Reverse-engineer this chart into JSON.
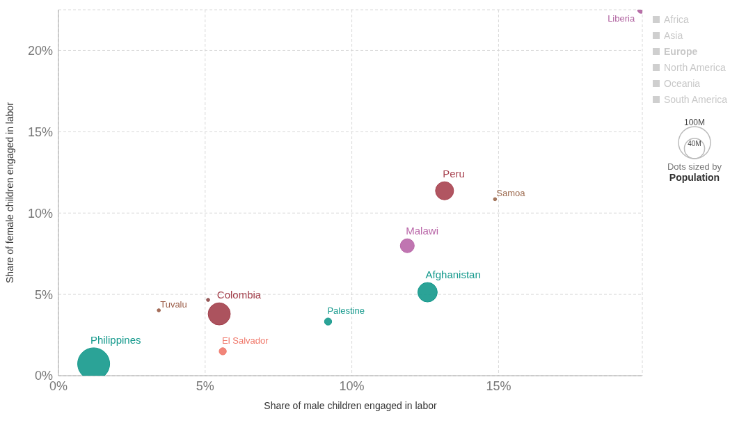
{
  "chart_data": {
    "type": "bubble",
    "xlabel": "Share of male children engaged in labor",
    "ylabel": "Share of female children engaged in labor",
    "xlim": [
      0,
      19.9
    ],
    "xticks": [
      {
        "value": 0,
        "label": "0%"
      },
      {
        "value": 5,
        "label": "5%"
      },
      {
        "value": 10,
        "label": "10%"
      },
      {
        "value": 15,
        "label": "15%"
      }
    ],
    "ylim": [
      0,
      22.5
    ],
    "yticks": [
      {
        "value": 0,
        "label": "0%"
      },
      {
        "value": 5,
        "label": "5%"
      },
      {
        "value": 10,
        "label": "10%"
      },
      {
        "value": 15,
        "label": "15%"
      },
      {
        "value": 20,
        "label": "20%"
      }
    ],
    "grid": true,
    "size_legend": [
      {
        "value": 100,
        "label": "100M"
      },
      {
        "value": 40,
        "label": "40M"
      }
    ],
    "annotations": [
      "Africa",
      "Asia",
      "Europe",
      "North America",
      "Oceania",
      "South America",
      "Dots sized by",
      "Population"
    ],
    "series": [
      {
        "name": "Philippines",
        "color": "#14998c",
        "x": [
          1.2
        ],
        "values": [
          0.73
        ],
        "sizes": [
          100
        ]
      },
      {
        "name": "Tuvalu",
        "color": "#9c5f4a",
        "x": [
          3.42
        ],
        "values": [
          4.02
        ],
        "sizes": [
          1
        ]
      },
      {
        "color": "#8e4a4a",
        "x": [
          5.1
        ],
        "values": [
          4.66
        ],
        "sizes": [
          1
        ]
      },
      {
        "name": "Colombia",
        "color": "#a3404c",
        "x": [
          5.48
        ],
        "values": [
          3.8
        ],
        "sizes": [
          48
        ]
      },
      {
        "name": "El Salvador",
        "color": "#f0786a",
        "x": [
          5.6
        ],
        "values": [
          1.5
        ],
        "sizes": [
          5
        ]
      },
      {
        "name": "Palestine",
        "color": "#14998c",
        "x": [
          9.19
        ],
        "values": [
          3.33
        ],
        "sizes": [
          5
        ]
      },
      {
        "name": "Afghanistan",
        "color": "#14998c",
        "x": [
          12.58
        ],
        "values": [
          5.13
        ],
        "sizes": [
          37
        ]
      },
      {
        "name": "Malawi",
        "color": "#b966a8",
        "x": [
          11.89
        ],
        "values": [
          7.99
        ],
        "sizes": [
          19
        ]
      },
      {
        "name": "Peru",
        "color": "#a84350",
        "x": [
          13.16
        ],
        "values": [
          11.37
        ],
        "sizes": [
          32
        ]
      },
      {
        "name": "Samoa",
        "color": "#9c6a4e",
        "x": [
          14.88
        ],
        "values": [
          10.85
        ],
        "sizes": [
          1
        ]
      },
      {
        "name": "Liberia",
        "color": "#b062a0",
        "x": [
          19.86
        ],
        "values": [
          22.5
        ],
        "sizes": [
          5
        ]
      }
    ]
  }
}
